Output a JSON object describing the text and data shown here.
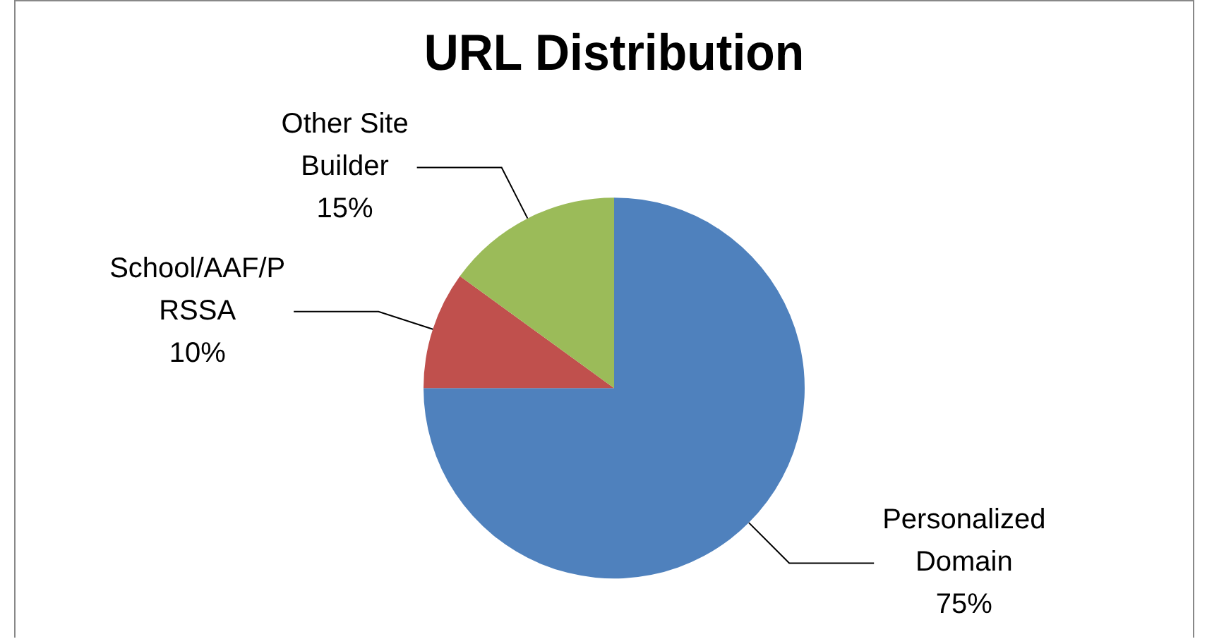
{
  "chart_data": {
    "type": "pie",
    "title": "URL Distribution",
    "categories": [
      "Personalized Domain",
      "School/AAF/PRSSA",
      "Other Site Builder"
    ],
    "values": [
      75,
      10,
      15
    ],
    "colors": [
      "#4f81bd",
      "#c0504d",
      "#9bbb59"
    ],
    "value_labels": [
      "75%",
      "10%",
      "15%"
    ],
    "legend": false
  }
}
